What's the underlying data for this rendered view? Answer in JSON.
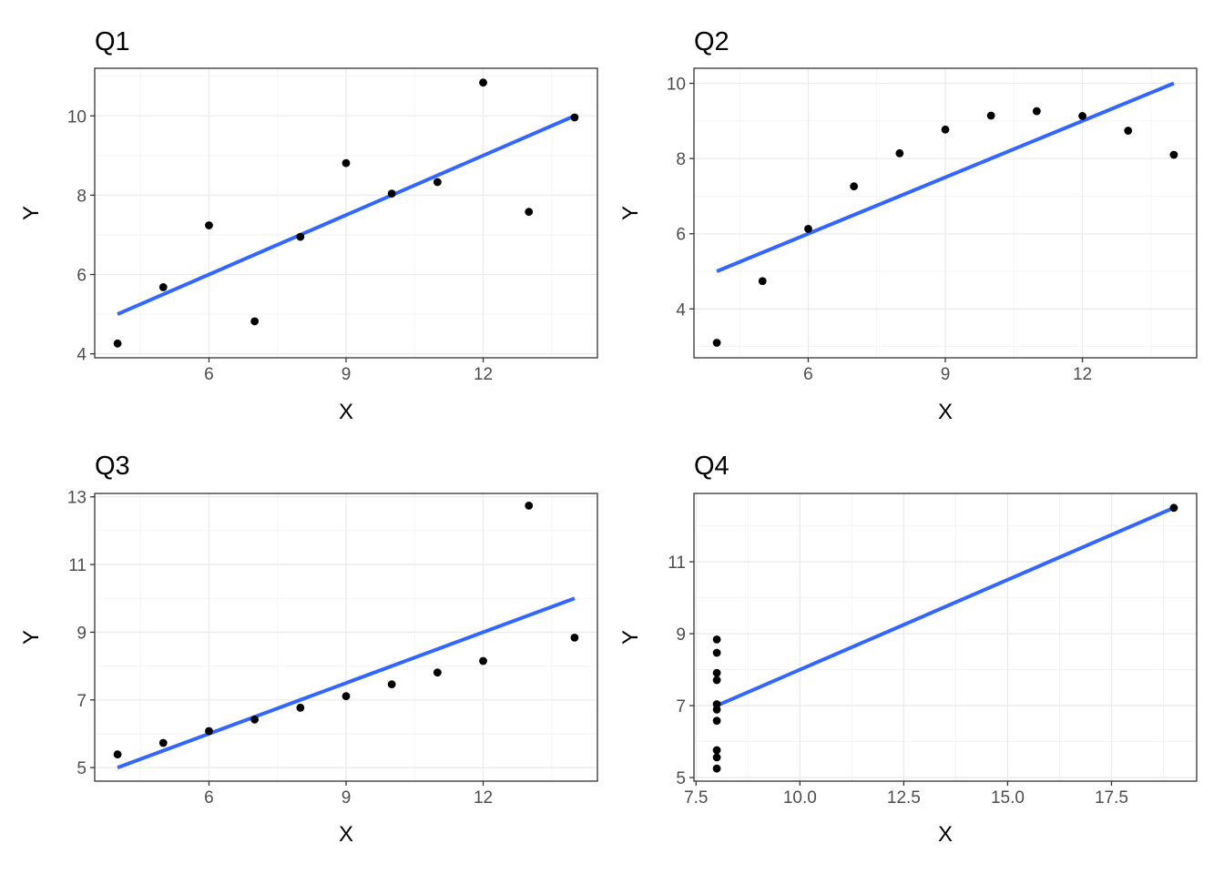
{
  "chart_data": [
    {
      "type": "scatter",
      "title": "Q1",
      "xlabel": "X",
      "ylabel": "Y",
      "xlim": [
        3.5,
        14.5
      ],
      "ylim": [
        3.9,
        11.2
      ],
      "xticks": [
        6,
        9,
        12
      ],
      "yticks": [
        4,
        6,
        8,
        10
      ],
      "grid": true,
      "colors": {
        "points": "#000000",
        "fit_line": "#3366ff"
      },
      "points": [
        {
          "x": 10,
          "y": 8.04
        },
        {
          "x": 8,
          "y": 6.95
        },
        {
          "x": 13,
          "y": 7.58
        },
        {
          "x": 9,
          "y": 8.81
        },
        {
          "x": 11,
          "y": 8.33
        },
        {
          "x": 14,
          "y": 9.96
        },
        {
          "x": 6,
          "y": 7.24
        },
        {
          "x": 4,
          "y": 4.26
        },
        {
          "x": 12,
          "y": 10.84
        },
        {
          "x": 7,
          "y": 4.82
        },
        {
          "x": 5,
          "y": 5.68
        }
      ],
      "fit_line": {
        "x": [
          4,
          14
        ],
        "y": [
          5.0,
          10.0
        ]
      }
    },
    {
      "type": "scatter",
      "title": "Q2",
      "xlabel": "X",
      "ylabel": "Y",
      "xlim": [
        3.5,
        14.5
      ],
      "ylim": [
        2.7,
        10.4
      ],
      "xticks": [
        6,
        9,
        12
      ],
      "yticks": [
        4,
        6,
        8,
        10
      ],
      "grid": true,
      "colors": {
        "points": "#000000",
        "fit_line": "#3366ff"
      },
      "points": [
        {
          "x": 10,
          "y": 9.14
        },
        {
          "x": 8,
          "y": 8.14
        },
        {
          "x": 13,
          "y": 8.74
        },
        {
          "x": 9,
          "y": 8.77
        },
        {
          "x": 11,
          "y": 9.26
        },
        {
          "x": 14,
          "y": 8.1
        },
        {
          "x": 6,
          "y": 6.13
        },
        {
          "x": 4,
          "y": 3.1
        },
        {
          "x": 12,
          "y": 9.13
        },
        {
          "x": 7,
          "y": 7.26
        },
        {
          "x": 5,
          "y": 4.74
        }
      ],
      "fit_line": {
        "x": [
          4,
          14
        ],
        "y": [
          5.0,
          10.0
        ]
      }
    },
    {
      "type": "scatter",
      "title": "Q3",
      "xlabel": "X",
      "ylabel": "Y",
      "xlim": [
        3.5,
        14.5
      ],
      "ylim": [
        4.6,
        13.1
      ],
      "xticks": [
        6,
        9,
        12
      ],
      "yticks": [
        5,
        7,
        9,
        11,
        13
      ],
      "grid": true,
      "colors": {
        "points": "#000000",
        "fit_line": "#3366ff"
      },
      "points": [
        {
          "x": 10,
          "y": 7.46
        },
        {
          "x": 8,
          "y": 6.77
        },
        {
          "x": 13,
          "y": 12.74
        },
        {
          "x": 9,
          "y": 7.11
        },
        {
          "x": 11,
          "y": 7.81
        },
        {
          "x": 14,
          "y": 8.84
        },
        {
          "x": 6,
          "y": 6.08
        },
        {
          "x": 4,
          "y": 5.39
        },
        {
          "x": 12,
          "y": 8.15
        },
        {
          "x": 7,
          "y": 6.42
        },
        {
          "x": 5,
          "y": 5.73
        }
      ],
      "fit_line": {
        "x": [
          4,
          14
        ],
        "y": [
          5.0,
          10.0
        ]
      }
    },
    {
      "type": "scatter",
      "title": "Q4",
      "xlabel": "X",
      "ylabel": "Y",
      "xlim": [
        7.45,
        19.55
      ],
      "ylim": [
        4.9,
        12.9
      ],
      "xticks": [
        7.5,
        10.0,
        12.5,
        15.0,
        17.5
      ],
      "xtick_labels": [
        "7.5",
        "10.0",
        "12.5",
        "15.0",
        "17.5"
      ],
      "yticks": [
        5,
        7,
        9,
        11
      ],
      "grid": true,
      "colors": {
        "points": "#000000",
        "fit_line": "#3366ff"
      },
      "points": [
        {
          "x": 8,
          "y": 6.58
        },
        {
          "x": 8,
          "y": 5.76
        },
        {
          "x": 8,
          "y": 7.71
        },
        {
          "x": 8,
          "y": 8.84
        },
        {
          "x": 8,
          "y": 8.47
        },
        {
          "x": 8,
          "y": 7.04
        },
        {
          "x": 8,
          "y": 5.25
        },
        {
          "x": 19,
          "y": 12.5
        },
        {
          "x": 8,
          "y": 5.56
        },
        {
          "x": 8,
          "y": 7.91
        },
        {
          "x": 8,
          "y": 6.89
        }
      ],
      "fit_line": {
        "x": [
          8,
          19
        ],
        "y": [
          7.0,
          12.5
        ]
      }
    }
  ]
}
